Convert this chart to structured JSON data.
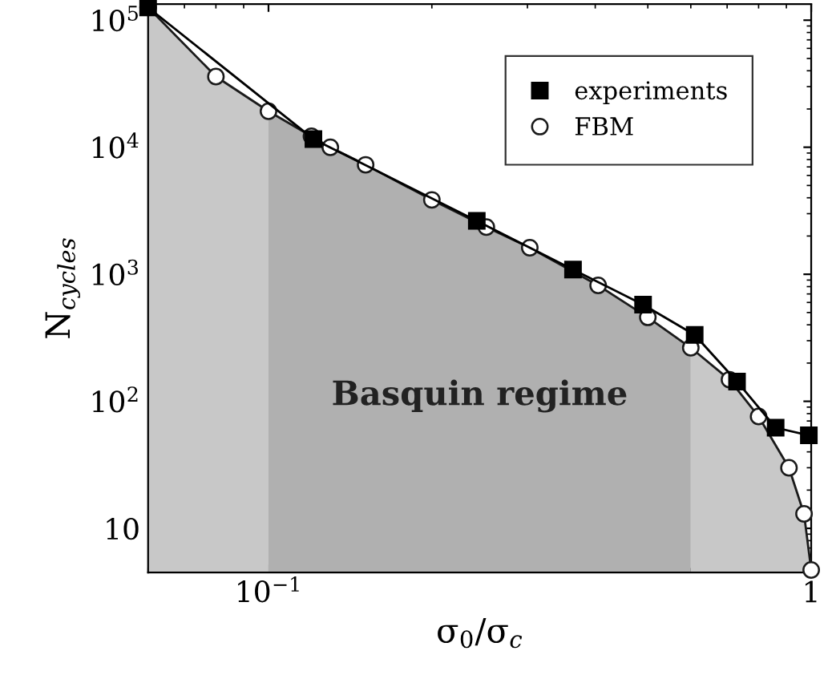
{
  "chart_data": {
    "type": "line",
    "xlabel": "σ$_{0}$/σ$_{c}$",
    "ylabel": "N$_{cycles}$",
    "log": "xy",
    "xlim": [
      0.06,
      1
    ],
    "ylim": [
      4.5,
      134000
    ],
    "xticks": [
      {
        "value": 0.1,
        "label": "10$^{−1}$"
      },
      1
    ],
    "yticks": [
      10,
      {
        "value": 100,
        "label": "10$^{2}$"
      },
      {
        "value": 1000,
        "label": "10$^{3}$"
      },
      {
        "value": 10000,
        "label": "10$^{4}$"
      },
      {
        "value": 100000,
        "label": "10$^{5}$"
      }
    ],
    "grid": false,
    "legend": "top right",
    "bands": [
      {
        "axis": "x",
        "from": 0.06,
        "to": 0.1,
        "color": "#c8c8c8"
      },
      {
        "axis": "x",
        "from": 0.1,
        "to": 0.6,
        "label": "Basquin regime",
        "color": "#b0b0b0"
      },
      {
        "axis": "x",
        "from": 0.6,
        "to": 1,
        "color": "#c8c8c8"
      }
    ],
    "series": [
      {
        "name": "experiments",
        "color": "#000000",
        "marker": "square",
        "x": [
          0.06,
          0.121,
          0.242,
          0.364,
          0.49,
          0.61,
          0.73,
          0.86,
          0.99
        ],
        "values": [
          126000,
          11600,
          2630,
          1090,
          577,
          333,
          143,
          62,
          54
        ]
      },
      {
        "name": "FBM",
        "color": "#1a1a1a",
        "marker": "circle",
        "x": [
          0.06,
          0.08,
          0.1,
          0.12,
          0.13,
          0.151,
          0.2,
          0.252,
          0.303,
          0.405,
          0.5,
          0.6,
          0.707,
          0.8,
          0.91,
          0.97,
          1.0
        ],
        "values": [
          126000,
          36000,
          19200,
          12200,
          10000,
          7270,
          3850,
          2350,
          1620,
          817,
          458,
          264,
          148,
          76,
          30,
          13,
          4.7
        ]
      }
    ]
  }
}
